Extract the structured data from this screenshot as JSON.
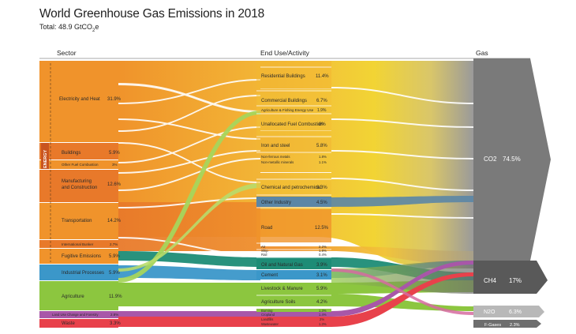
{
  "title": "World Greenhouse Gas Emissions in 2018",
  "subtitle_prefix": "Total: 48.9 GtCO",
  "subtitle_sub": "2",
  "subtitle_suffix": "e",
  "headers": {
    "sector": "Sector",
    "end_use": "End Use/Activity",
    "gas": "Gas"
  },
  "energy_group_label": "ENERGY",
  "colors": {
    "energy_orange": "#F0932B",
    "energy_orange_light": "#F5A63C",
    "energy_dark": "#E8792A",
    "industrial_blue": "#3B97C9",
    "agriculture_green": "#8CC63F",
    "land_use_purple": "#A857A8",
    "waste_red": "#E8414B",
    "yellow": "#F2D434",
    "blue_grey": "#5B86A6",
    "teal": "#1E8C76",
    "gas_grey": "#7A7A7A",
    "gas_dark": "#595959",
    "gas_light": "#B8B8B8"
  },
  "chart_data": {
    "type": "sankey",
    "unit": "% of total emissions",
    "total": "48.9 GtCO2e",
    "sectors": [
      {
        "name": "Electricity and Heat",
        "value": 31.9,
        "group": "Energy"
      },
      {
        "name": "Buildings",
        "value": 5.9,
        "group": "Energy"
      },
      {
        "name": "Other Fuel Combustion",
        "value": 3,
        "group": "Energy"
      },
      {
        "name": "Manufacturing and Construction",
        "value": 12.6,
        "group": "Energy"
      },
      {
        "name": "Transportation",
        "value": 14.2,
        "group": "Energy"
      },
      {
        "name": "International Bunker",
        "value": 2.7,
        "group": "Energy"
      },
      {
        "name": "Fugitive Emissions",
        "value": 5.9,
        "group": "Energy"
      },
      {
        "name": "Industrial Processes",
        "value": 5.9
      },
      {
        "name": "Agriculture",
        "value": 11.9
      },
      {
        "name": "Land Use Change and Forestry",
        "value": 2.8
      },
      {
        "name": "Waste",
        "value": 3.3
      }
    ],
    "end_uses": [
      {
        "name": "Residential Buildings",
        "value": 11.4
      },
      {
        "name": "Commercial Buildings",
        "value": 6.7
      },
      {
        "name": "Agriculture & Fishing Energy Use",
        "value": 1.9
      },
      {
        "name": "Unallocated Fuel Combustion",
        "value": 8
      },
      {
        "name": "Iron and steel",
        "value": 5.8
      },
      {
        "name": "Non-ferrous metals",
        "value": 1.8
      },
      {
        "name": "Non-metallic minerals",
        "value": 1.1
      },
      {
        "name": "Chemical and petrochemical",
        "value": 6.3
      },
      {
        "name": "Other Industry",
        "value": 4.5
      },
      {
        "name": "Road",
        "value": 12.5
      },
      {
        "name": "Air",
        "value": 2.2
      },
      {
        "name": "Ship",
        "value": 1.8
      },
      {
        "name": "Rail",
        "value": 0.4
      },
      {
        "name": "Oil and Natural Gas",
        "value": 3.9
      },
      {
        "name": "Cement",
        "value": 3.1
      },
      {
        "name": "Livestock & Manure",
        "value": 5.9
      },
      {
        "name": "Agriculture Soils",
        "value": 4.2
      },
      {
        "name": "Burning",
        "value": 1.3
      },
      {
        "name": "Cropland",
        "value": 1.4
      },
      {
        "name": "Landfills",
        "value": 2
      },
      {
        "name": "Wastewater",
        "value": 1.3
      }
    ],
    "gases": [
      {
        "name": "CO2",
        "value": 74.5
      },
      {
        "name": "CH4",
        "value": 17
      },
      {
        "name": "N2O",
        "value": 6.3
      },
      {
        "name": "F-Gases",
        "value": 2.3
      }
    ]
  },
  "labels": {
    "sectors": [
      {
        "name": "Electricity and Heat",
        "pct": "31.9%"
      },
      {
        "name": "Buildings",
        "pct": "5.9%"
      },
      {
        "name": "Other Fuel Combustion",
        "pct": "3%"
      },
      {
        "name1": "Manufacturing",
        "name2": "and Construction",
        "pct": "12.6%"
      },
      {
        "name": "Transportation",
        "pct": "14.2%"
      },
      {
        "name": "International Bunker",
        "pct": "2.7%"
      },
      {
        "name": "Fugitive Emissions",
        "pct": "5.9%"
      },
      {
        "name": "Industrial Processes",
        "pct": "5.9%"
      },
      {
        "name": "Agriculture",
        "pct": "11.9%"
      },
      {
        "name": "Land Use Change and Forestry",
        "pct": "2.8%"
      },
      {
        "name": "Waste",
        "pct": "3.3%"
      }
    ],
    "end_uses": [
      {
        "name": "Residential Buildings",
        "pct": "11.4%"
      },
      {
        "name": "Commercial Buildings",
        "pct": "6.7%"
      },
      {
        "name": "Agriculture & Fishing Energy Use",
        "pct": "1.9%"
      },
      {
        "name": "Unallocated Fuel Combustion",
        "pct": "8%"
      },
      {
        "name": "Iron and steel",
        "pct": "5.8%"
      },
      {
        "name": "Non-ferrous metals",
        "pct": "1.8%"
      },
      {
        "name": "Non-metallic minerals",
        "pct": "1.1%"
      },
      {
        "name": "Chemical and petrochemical",
        "pct": "6.3%"
      },
      {
        "name": "Other Industry",
        "pct": "4.5%"
      },
      {
        "name": "Road",
        "pct": "12.5%"
      },
      {
        "name": "Air",
        "pct": "2.2%"
      },
      {
        "name": "Ship",
        "pct": "1.8%"
      },
      {
        "name": "Rail",
        "pct": "0.4%"
      },
      {
        "name": "Oil and Natural Gas",
        "pct": "3.9%"
      },
      {
        "name": "Cement",
        "pct": "3.1%"
      },
      {
        "name": "Livestock & Manure",
        "pct": "5.9%"
      },
      {
        "name": "Agriculture Soils",
        "pct": "4.2%"
      },
      {
        "name": "Burning",
        "pct": "1.3%"
      },
      {
        "name": "Cropland",
        "pct": "1.4%"
      },
      {
        "name": "Landfills",
        "pct": "2%"
      },
      {
        "name": "Wastewater",
        "pct": "1.3%"
      }
    ],
    "gases": [
      {
        "name": "CO2",
        "pct": "74.5%"
      },
      {
        "name": "CH4",
        "pct": "17%"
      },
      {
        "name": "N2O",
        "pct": "6.3%"
      },
      {
        "name": "F-Gases",
        "pct": "2.3%"
      }
    ]
  }
}
